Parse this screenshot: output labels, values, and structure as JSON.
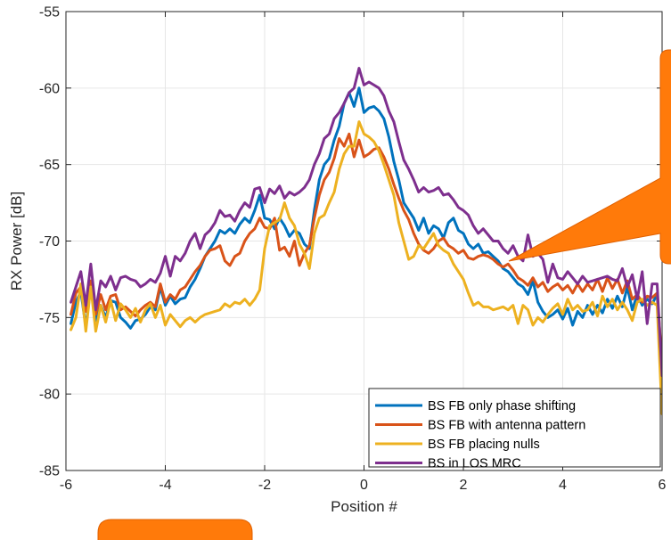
{
  "chart_data": {
    "type": "line",
    "title": "",
    "xlabel": "Position #",
    "ylabel": "RX Power [dB]",
    "xlim": [
      -6,
      6
    ],
    "ylim": [
      -85,
      -55
    ],
    "xticks": [
      -6,
      -4,
      -2,
      0,
      2,
      4,
      6
    ],
    "yticks": [
      -55,
      -60,
      -65,
      -70,
      -75,
      -80,
      -85
    ],
    "grid": true,
    "legend_position": "bottom-right",
    "x": [
      -5.9,
      -5.8,
      -5.7,
      -5.6,
      -5.5,
      -5.4,
      -5.3,
      -5.2,
      -5.1,
      -5.0,
      -4.9,
      -4.8,
      -4.7,
      -4.6,
      -4.5,
      -4.4,
      -4.3,
      -4.2,
      -4.1,
      -4.0,
      -3.9,
      -3.8,
      -3.7,
      -3.6,
      -3.5,
      -3.4,
      -3.3,
      -3.2,
      -3.1,
      -3.0,
      -2.9,
      -2.8,
      -2.7,
      -2.6,
      -2.5,
      -2.4,
      -2.3,
      -2.2,
      -2.1,
      -2.0,
      -1.9,
      -1.8,
      -1.7,
      -1.6,
      -1.5,
      -1.4,
      -1.3,
      -1.2,
      -1.1,
      -1.0,
      -0.9,
      -0.8,
      -0.7,
      -0.6,
      -0.5,
      -0.4,
      -0.3,
      -0.2,
      -0.1,
      0.0,
      0.1,
      0.2,
      0.3,
      0.4,
      0.5,
      0.6,
      0.7,
      0.8,
      0.9,
      1.0,
      1.1,
      1.2,
      1.3,
      1.4,
      1.5,
      1.6,
      1.7,
      1.8,
      1.9,
      2.0,
      2.1,
      2.2,
      2.3,
      2.4,
      2.5,
      2.6,
      2.7,
      2.8,
      2.9,
      3.0,
      3.1,
      3.2,
      3.3,
      3.4,
      3.5,
      3.6,
      3.7,
      3.8,
      3.9,
      4.0,
      4.1,
      4.2,
      4.3,
      4.4,
      4.5,
      4.6,
      4.7,
      4.8,
      4.9,
      5.0,
      5.1,
      5.2,
      5.3,
      5.4,
      5.5,
      5.6,
      5.7,
      5.8,
      5.9,
      6.0
    ],
    "series": [
      {
        "name": "BS FB only phase shifting",
        "color": "#0072BD",
        "values": [
          -75.4,
          -74.0,
          -73.3,
          -75.6,
          -73.0,
          -75.2,
          -74.2,
          -75.0,
          -73.9,
          -74.0,
          -75.0,
          -75.3,
          -75.7,
          -75.2,
          -75.1,
          -74.8,
          -74.3,
          -74.5,
          -73.0,
          -74.2,
          -73.6,
          -74.1,
          -73.8,
          -73.7,
          -73.0,
          -72.5,
          -71.8,
          -71.0,
          -70.5,
          -70.0,
          -69.3,
          -69.5,
          -69.2,
          -69.5,
          -68.9,
          -68.5,
          -68.8,
          -68.0,
          -67.0,
          -68.5,
          -68.6,
          -69.2,
          -68.5,
          -69.0,
          -69.7,
          -69.3,
          -69.5,
          -70.2,
          -70.5,
          -68.0,
          -66.0,
          -65.0,
          -64.6,
          -63.4,
          -62.5,
          -61.0,
          -60.3,
          -61.2,
          -60.0,
          -61.6,
          -61.3,
          -61.2,
          -61.5,
          -62.0,
          -63.2,
          -64.8,
          -66.0,
          -67.5,
          -68.0,
          -68.5,
          -69.3,
          -68.5,
          -69.5,
          -69.0,
          -69.2,
          -69.8,
          -68.8,
          -68.5,
          -69.3,
          -69.5,
          -70.2,
          -70.5,
          -70.2,
          -70.8,
          -70.7,
          -71.0,
          -71.3,
          -71.8,
          -72.0,
          -72.4,
          -72.8,
          -73.0,
          -73.5,
          -72.6,
          -74.0,
          -74.6,
          -75.0,
          -74.8,
          -74.5,
          -75.1,
          -74.4,
          -75.5,
          -74.6,
          -75.0,
          -74.2,
          -74.8,
          -74.2,
          -74.7,
          -73.8,
          -74.4,
          -73.6,
          -74.3,
          -73.0,
          -74.5,
          -73.5,
          -74.2,
          -73.8,
          -74.1,
          -73.5,
          -79.0
        ]
      },
      {
        "name": "BS FB with antenna pattern",
        "color": "#D95319",
        "values": [
          -74.8,
          -73.4,
          -73.0,
          -74.6,
          -72.6,
          -74.8,
          -73.5,
          -74.5,
          -73.6,
          -73.5,
          -74.5,
          -74.3,
          -74.6,
          -74.9,
          -74.5,
          -74.2,
          -74.0,
          -74.3,
          -72.8,
          -74.0,
          -73.5,
          -73.8,
          -73.2,
          -73.0,
          -72.5,
          -72.0,
          -71.6,
          -71.0,
          -70.6,
          -70.5,
          -70.3,
          -71.3,
          -71.6,
          -71.0,
          -70.8,
          -70.0,
          -69.5,
          -69.2,
          -68.5,
          -69.1,
          -69.2,
          -68.5,
          -70.6,
          -70.4,
          -71.0,
          -70.0,
          -71.6,
          -70.8,
          -70.3,
          -68.5,
          -67.0,
          -66.0,
          -65.5,
          -64.6,
          -63.3,
          -63.8,
          -63.0,
          -64.5,
          -63.4,
          -64.5,
          -64.3,
          -64.0,
          -63.9,
          -64.5,
          -65.3,
          -66.3,
          -67.2,
          -68.0,
          -68.6,
          -69.5,
          -70.2,
          -70.6,
          -70.8,
          -70.5,
          -70.0,
          -69.8,
          -70.3,
          -70.5,
          -70.8,
          -70.6,
          -71.1,
          -71.2,
          -71.0,
          -70.9,
          -71.0,
          -71.2,
          -71.5,
          -71.7,
          -71.5,
          -71.9,
          -72.4,
          -72.6,
          -72.9,
          -72.4,
          -73.0,
          -72.7,
          -73.3,
          -73.0,
          -72.8,
          -73.2,
          -72.9,
          -73.4,
          -72.8,
          -73.3,
          -72.8,
          -73.2,
          -72.5,
          -73.3,
          -72.4,
          -73.1,
          -72.5,
          -73.4,
          -72.6,
          -73.8,
          -73.5,
          -74.0,
          -73.6,
          -73.7,
          -73.4,
          -78.0
        ]
      },
      {
        "name": "BS FB placing nulls",
        "color": "#EDB120",
        "values": [
          -75.8,
          -75.0,
          -72.8,
          -75.9,
          -73.0,
          -75.9,
          -74.2,
          -75.3,
          -73.9,
          -75.2,
          -74.1,
          -74.5,
          -75.0,
          -74.4,
          -75.3,
          -74.5,
          -74.1,
          -75.0,
          -74.2,
          -75.5,
          -74.8,
          -75.2,
          -75.6,
          -75.2,
          -75.0,
          -75.3,
          -75.0,
          -74.8,
          -74.7,
          -74.6,
          -74.5,
          -74.1,
          -74.3,
          -74.0,
          -74.1,
          -73.8,
          -74.2,
          -73.8,
          -73.2,
          -70.5,
          -69.0,
          -68.8,
          -68.6,
          -67.5,
          -68.5,
          -69.0,
          -70.2,
          -70.8,
          -71.8,
          -69.5,
          -68.5,
          -68.3,
          -67.5,
          -66.8,
          -65.3,
          -64.3,
          -63.8,
          -63.8,
          -62.2,
          -63.0,
          -63.2,
          -63.5,
          -64.1,
          -65.0,
          -66.0,
          -67.0,
          -68.8,
          -70.0,
          -71.2,
          -71.0,
          -70.3,
          -70.5,
          -70.0,
          -69.5,
          -70.3,
          -70.6,
          -70.8,
          -71.5,
          -72.0,
          -72.5,
          -73.4,
          -74.2,
          -74.0,
          -74.3,
          -74.3,
          -74.5,
          -74.4,
          -74.3,
          -74.5,
          -74.2,
          -75.4,
          -74.2,
          -74.5,
          -75.5,
          -75.0,
          -75.3,
          -74.8,
          -74.4,
          -74.1,
          -74.8,
          -73.8,
          -74.5,
          -74.2,
          -74.6,
          -74.5,
          -74.0,
          -74.9,
          -73.6,
          -74.3,
          -73.8,
          -74.5,
          -74.0,
          -74.5,
          -75.2,
          -74.0,
          -73.8,
          -74.2,
          -74.0,
          -74.2,
          -81.3
        ]
      },
      {
        "name": "BS in LOS MRC",
        "color": "#7E2F8E",
        "values": [
          -74.0,
          -73.0,
          -72.0,
          -74.2,
          -71.5,
          -74.5,
          -72.6,
          -73.0,
          -72.3,
          -73.2,
          -72.4,
          -72.3,
          -72.5,
          -72.6,
          -73.0,
          -72.8,
          -72.5,
          -72.7,
          -72.1,
          -71.0,
          -72.3,
          -71.0,
          -71.3,
          -70.8,
          -70.0,
          -69.5,
          -70.5,
          -69.6,
          -69.3,
          -68.8,
          -68.0,
          -68.4,
          -68.3,
          -68.7,
          -68.0,
          -67.5,
          -67.8,
          -66.6,
          -66.5,
          -67.5,
          -66.6,
          -66.9,
          -66.4,
          -67.2,
          -66.8,
          -67.0,
          -66.8,
          -66.5,
          -66.0,
          -65.0,
          -64.3,
          -63.3,
          -63.0,
          -62.0,
          -61.6,
          -61.0,
          -60.3,
          -60.0,
          -58.7,
          -59.8,
          -59.6,
          -59.8,
          -60.0,
          -60.5,
          -61.5,
          -62.2,
          -63.5,
          -64.7,
          -65.3,
          -66.0,
          -66.8,
          -66.5,
          -66.8,
          -66.7,
          -66.5,
          -67.0,
          -66.9,
          -67.3,
          -67.8,
          -68.0,
          -68.3,
          -69.0,
          -69.5,
          -69.2,
          -69.6,
          -70.0,
          -70.0,
          -70.5,
          -70.8,
          -70.3,
          -71.0,
          -71.3,
          -69.6,
          -71.0,
          -70.8,
          -71.2,
          -72.7,
          -71.5,
          -72.4,
          -72.5,
          -72.0,
          -72.4,
          -72.8,
          -72.3,
          -72.7,
          -72.6,
          -72.5,
          -72.4,
          -72.3,
          -72.5,
          -72.6,
          -71.8,
          -73.0,
          -72.2,
          -73.8,
          -72.0,
          -75.4,
          -72.8,
          -72.8,
          -78.8
        ]
      }
    ]
  }
}
